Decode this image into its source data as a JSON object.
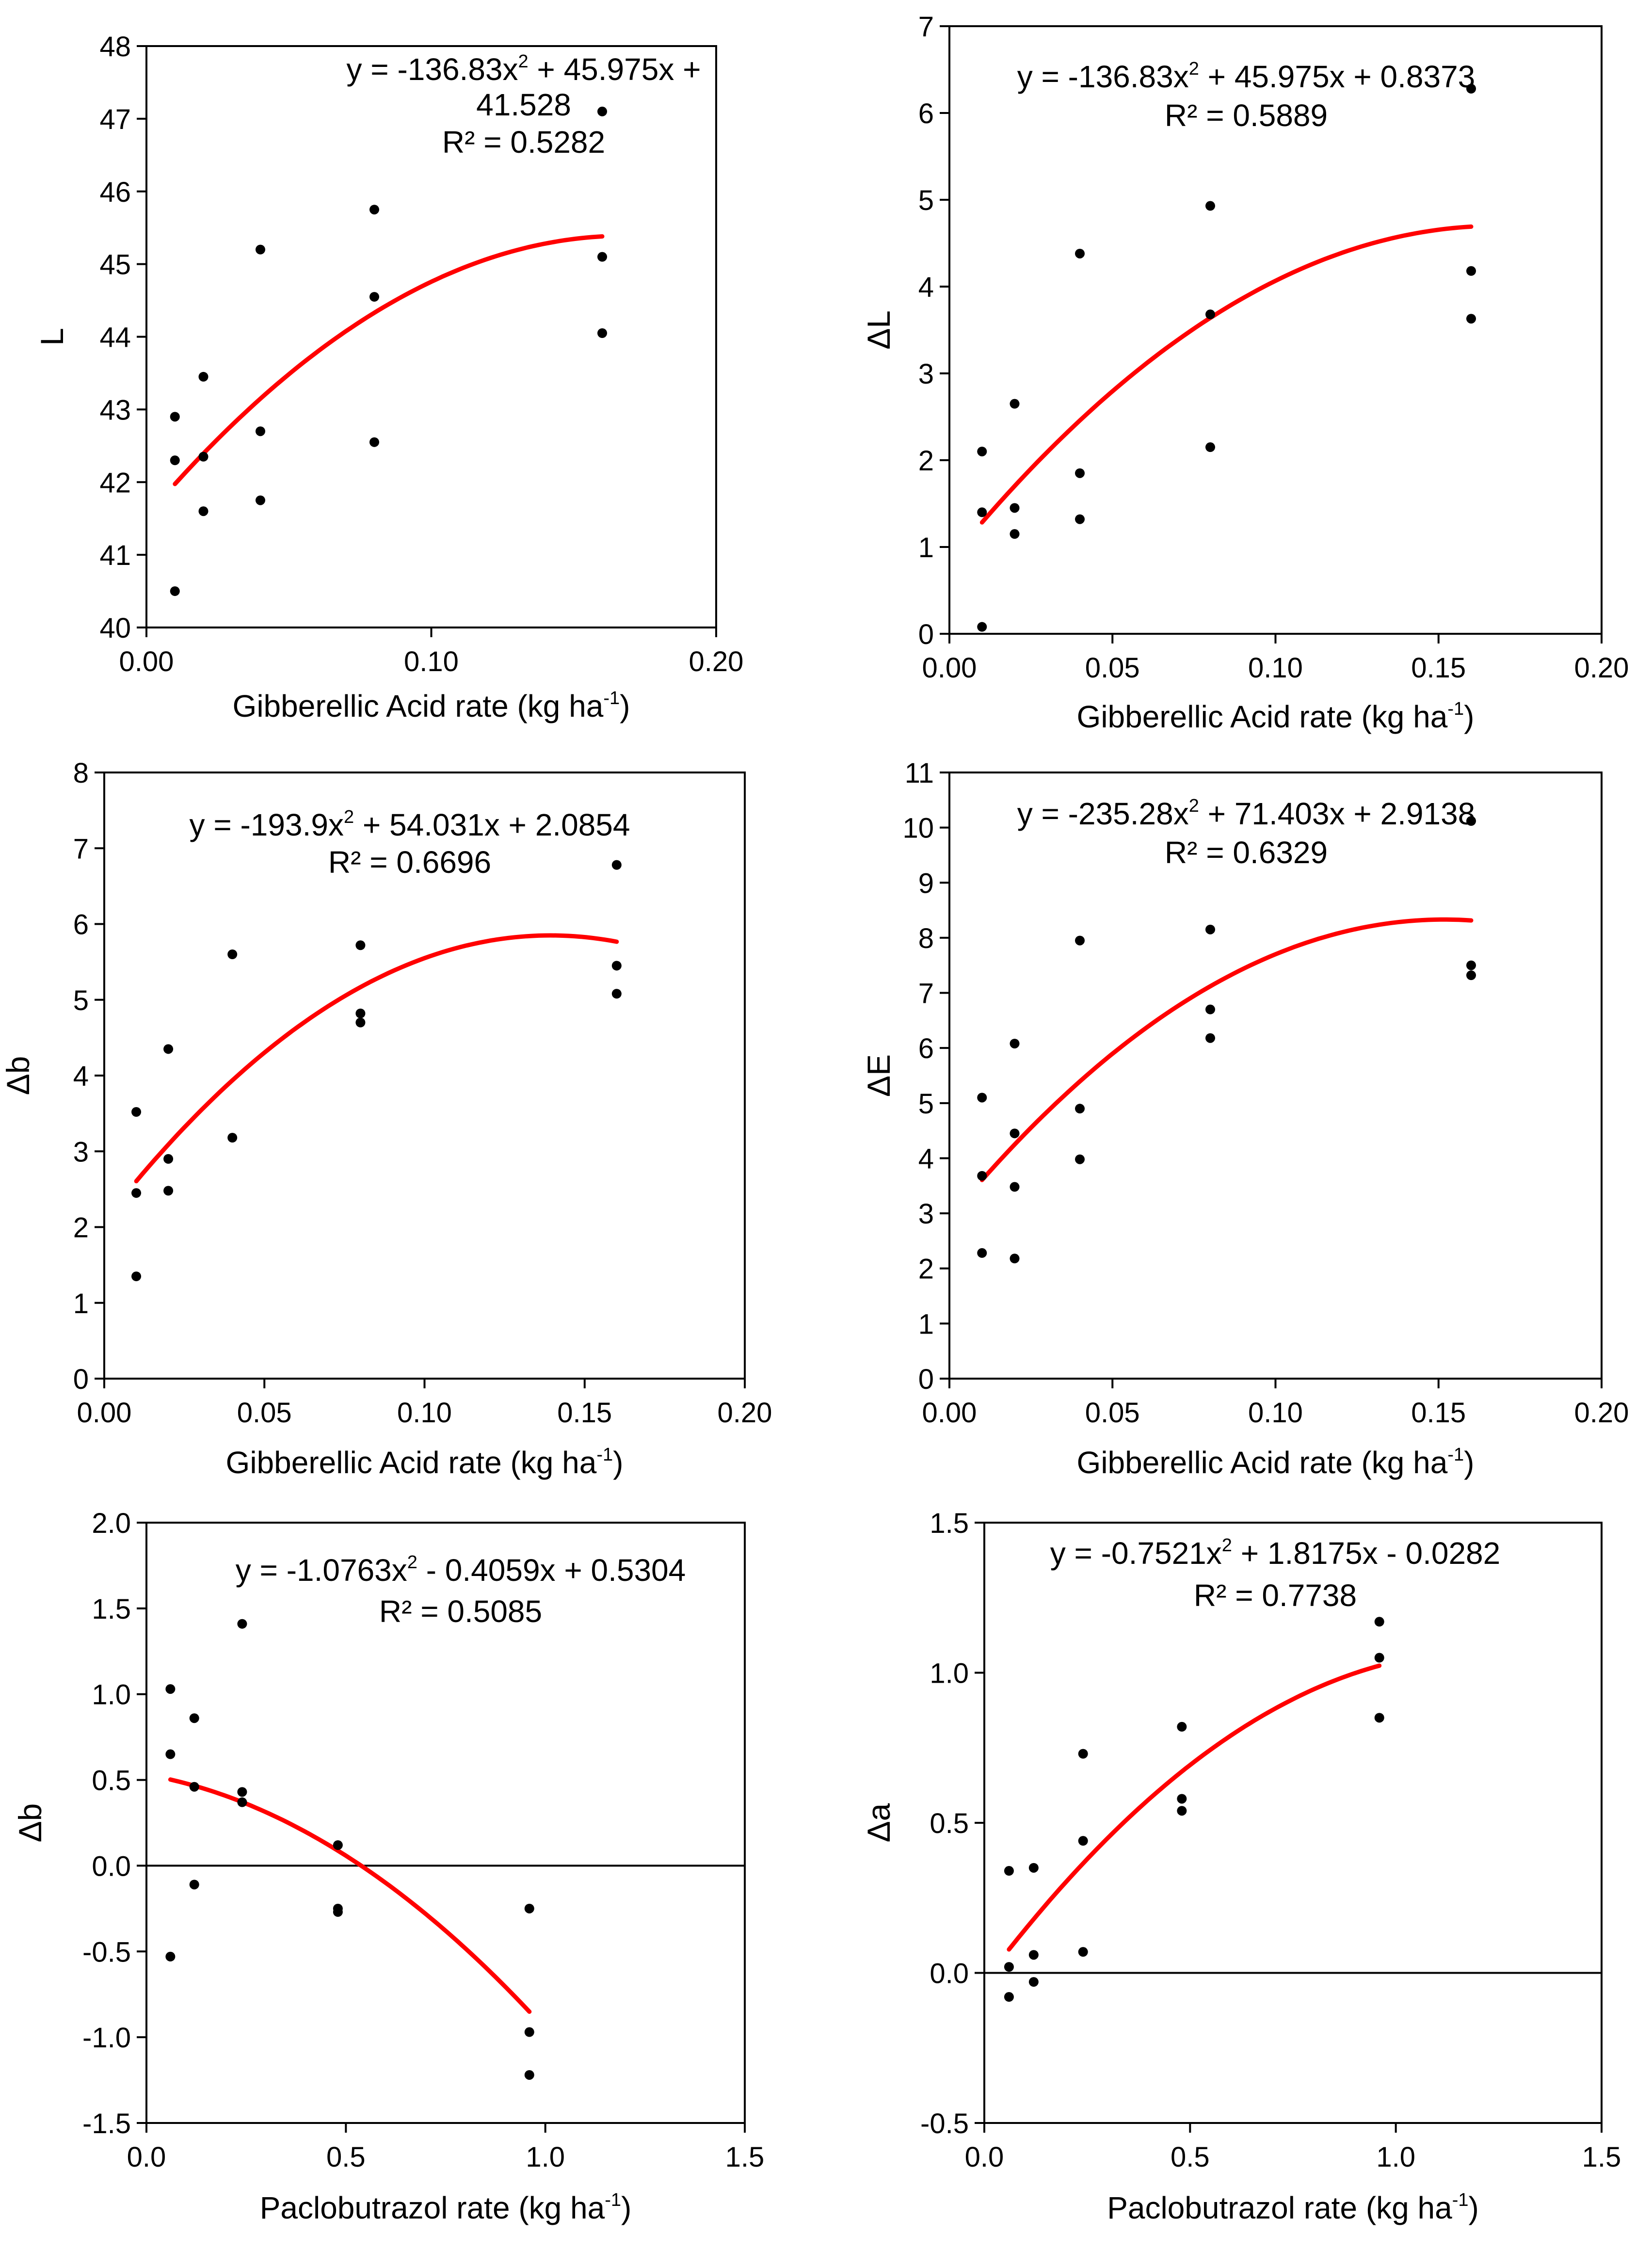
{
  "figure": {
    "charts": 6,
    "colors": {
      "axis": "#000000",
      "point": "#000000",
      "fit": "#ff0000",
      "background": "#ffffff"
    }
  },
  "chart_data": [
    {
      "id": "L",
      "type": "scatter",
      "xlabel": "Gibberellic Acid rate (kg ha",
      "xlabel_sup": "-1",
      "xlabel_close": ")",
      "ylabel": "L",
      "xlim": [
        0,
        0.2
      ],
      "ylim": [
        40,
        48
      ],
      "xticks": [
        "0.00",
        "0.10",
        "0.20"
      ],
      "xtick_values": [
        0,
        0.1,
        0.2
      ],
      "yticks": [
        "40",
        "41",
        "42",
        "43",
        "44",
        "45",
        "46",
        "47",
        "48"
      ],
      "ytick_values": [
        40,
        41,
        42,
        43,
        44,
        45,
        46,
        47,
        48
      ],
      "annotation_lines": [
        "y = -136.83x",
        "2",
        " + 45.975x +",
        "41.528",
        "R² = 0.5282"
      ],
      "fit": {
        "a": -136.83,
        "b": 45.975,
        "c": 41.528,
        "x_range": [
          0.01,
          0.16
        ]
      },
      "x": [
        0.01,
        0.01,
        0.01,
        0.02,
        0.02,
        0.02,
        0.04,
        0.04,
        0.04,
        0.08,
        0.08,
        0.08,
        0.16,
        0.16,
        0.16
      ],
      "y": [
        42.9,
        42.3,
        40.5,
        43.45,
        42.35,
        41.6,
        45.2,
        42.7,
        41.75,
        45.75,
        44.55,
        42.55,
        47.1,
        45.1,
        44.05
      ]
    },
    {
      "id": "deltaL",
      "type": "scatter",
      "xlabel": "Gibberellic Acid rate (kg ha",
      "xlabel_sup": "-1",
      "xlabel_close": ")",
      "ylabel": "ΔL",
      "xlim": [
        0,
        0.2
      ],
      "ylim": [
        0,
        7
      ],
      "xticks": [
        "0.00",
        "0.05",
        "0.10",
        "0.15",
        "0.20"
      ],
      "xtick_values": [
        0,
        0.05,
        0.1,
        0.15,
        0.2
      ],
      "yticks": [
        "0",
        "1",
        "2",
        "3",
        "4",
        "5",
        "6",
        "7"
      ],
      "ytick_values": [
        0,
        1,
        2,
        3,
        4,
        5,
        6,
        7
      ],
      "annotation_lines": [
        "y = -136.83x",
        "2",
        " + 45.975x + 0.8373",
        "",
        "R² = 0.5889"
      ],
      "fit": {
        "a": -136.83,
        "b": 45.975,
        "c": 0.8373,
        "x_range": [
          0.01,
          0.16
        ]
      },
      "x": [
        0.01,
        0.01,
        0.01,
        0.02,
        0.02,
        0.02,
        0.04,
        0.04,
        0.04,
        0.08,
        0.08,
        0.08,
        0.16,
        0.16,
        0.16
      ],
      "y": [
        2.1,
        1.4,
        0.08,
        2.65,
        1.45,
        1.15,
        4.38,
        1.85,
        1.32,
        4.93,
        3.68,
        2.15,
        6.28,
        4.18,
        3.63
      ]
    },
    {
      "id": "deltab_ga",
      "type": "scatter",
      "xlabel": "Gibberellic Acid rate (kg ha",
      "xlabel_sup": "-1",
      "xlabel_close": ")",
      "ylabel": "Δb",
      "xlim": [
        0,
        0.2
      ],
      "ylim": [
        0,
        8
      ],
      "xticks": [
        "0.00",
        "0.05",
        "0.10",
        "0.15",
        "0.20"
      ],
      "xtick_values": [
        0,
        0.05,
        0.1,
        0.15,
        0.2
      ],
      "yticks": [
        "0",
        "1",
        "2",
        "3",
        "4",
        "5",
        "6",
        "7",
        "8"
      ],
      "ytick_values": [
        0,
        1,
        2,
        3,
        4,
        5,
        6,
        7,
        8
      ],
      "annotation_lines": [
        "y = -193.9x",
        "2",
        " + 54.031x + 2.0854",
        "",
        "R² = 0.6696"
      ],
      "fit": {
        "a": -193.9,
        "b": 54.031,
        "c": 2.0854,
        "x_range": [
          0.01,
          0.16
        ]
      },
      "x": [
        0.01,
        0.01,
        0.01,
        0.02,
        0.02,
        0.02,
        0.04,
        0.04,
        0.08,
        0.08,
        0.08,
        0.16,
        0.16,
        0.16
      ],
      "y": [
        3.52,
        2.45,
        1.35,
        4.35,
        2.9,
        2.48,
        5.6,
        3.18,
        5.72,
        4.82,
        4.7,
        6.78,
        5.45,
        5.08
      ]
    },
    {
      "id": "deltaE",
      "type": "scatter",
      "xlabel": "Gibberellic Acid rate (kg ha",
      "xlabel_sup": "-1",
      "xlabel_close": ")",
      "ylabel": "ΔE",
      "xlim": [
        0,
        0.2
      ],
      "ylim": [
        0,
        11
      ],
      "xticks": [
        "0.00",
        "0.05",
        "0.10",
        "0.15",
        "0.20"
      ],
      "xtick_values": [
        0,
        0.05,
        0.1,
        0.15,
        0.2
      ],
      "yticks": [
        "0",
        "1",
        "2",
        "3",
        "4",
        "5",
        "6",
        "7",
        "8",
        "9",
        "10",
        "11"
      ],
      "ytick_values": [
        0,
        1,
        2,
        3,
        4,
        5,
        6,
        7,
        8,
        9,
        10,
        11
      ],
      "annotation_lines": [
        "y = -235.28x",
        "2",
        " + 71.403x + 2.9138",
        "",
        "R² = 0.6329"
      ],
      "fit": {
        "a": -235.28,
        "b": 71.403,
        "c": 2.9138,
        "x_range": [
          0.01,
          0.16
        ]
      },
      "x": [
        0.01,
        0.01,
        0.01,
        0.02,
        0.02,
        0.02,
        0.02,
        0.04,
        0.04,
        0.04,
        0.08,
        0.08,
        0.08,
        0.16,
        0.16,
        0.16
      ],
      "y": [
        5.1,
        3.68,
        2.28,
        6.08,
        4.45,
        3.48,
        2.18,
        7.95,
        4.9,
        3.98,
        8.15,
        6.7,
        6.18,
        10.12,
        7.5,
        7.32
      ]
    },
    {
      "id": "deltab_pbz",
      "type": "scatter",
      "xlabel": "Paclobutrazol rate (kg ha",
      "xlabel_sup": "-1",
      "xlabel_close": ")",
      "ylabel": "Δb",
      "xlim": [
        0,
        1.5
      ],
      "ylim": [
        -1.5,
        2.0
      ],
      "xticks": [
        "0.0",
        "0.5",
        "1.0",
        "1.5"
      ],
      "xtick_values": [
        0,
        0.5,
        1.0,
        1.5
      ],
      "yticks": [
        "-1.5",
        "-1.0",
        "-0.5",
        "0.0",
        "0.5",
        "1.0",
        "1.5",
        "2.0"
      ],
      "ytick_values": [
        -1.5,
        -1.0,
        -0.5,
        0,
        0.5,
        1.0,
        1.5,
        2.0
      ],
      "zero_line": true,
      "annotation_lines": [
        "y = -1.0763x",
        "2",
        " - 0.4059x + 0.5304",
        "",
        "R² = 0.5085"
      ],
      "fit": {
        "a": -1.0763,
        "b": -0.4059,
        "c": 0.5304,
        "x_range": [
          0.06,
          0.96
        ]
      },
      "x": [
        0.06,
        0.06,
        0.06,
        0.12,
        0.12,
        0.12,
        0.24,
        0.24,
        0.24,
        0.48,
        0.48,
        0.48,
        0.96,
        0.96,
        0.96
      ],
      "y": [
        1.03,
        0.65,
        -0.53,
        0.86,
        0.46,
        -0.11,
        1.41,
        0.43,
        0.37,
        0.12,
        -0.25,
        -0.27,
        -0.25,
        -0.97,
        -1.22
      ]
    },
    {
      "id": "deltaa_pbz",
      "type": "scatter",
      "xlabel": "Paclobutrazol rate (kg ha",
      "xlabel_sup": "-1",
      "xlabel_close": ")",
      "ylabel": "Δa",
      "xlim": [
        0,
        1.5
      ],
      "ylim": [
        -0.5,
        1.5
      ],
      "xticks": [
        "0.0",
        "0.5",
        "1.0",
        "1.5"
      ],
      "xtick_values": [
        0,
        0.5,
        1.0,
        1.5
      ],
      "yticks": [
        "-0.5",
        "0.0",
        "0.5",
        "1.0",
        "1.5"
      ],
      "ytick_values": [
        -0.5,
        0,
        0.5,
        1.0,
        1.5
      ],
      "zero_line": true,
      "annotation_lines": [
        "y = -0.7521x",
        "2",
        " + 1.8175x - 0.0282",
        "",
        "R² = 0.7738"
      ],
      "fit": {
        "a": -0.7521,
        "b": 1.8175,
        "c": -0.0282,
        "x_range": [
          0.06,
          0.96
        ]
      },
      "x": [
        0.06,
        0.06,
        0.06,
        0.12,
        0.12,
        0.12,
        0.24,
        0.24,
        0.24,
        0.48,
        0.48,
        0.48,
        0.96,
        0.96,
        0.96
      ],
      "y": [
        0.34,
        0.02,
        -0.08,
        0.35,
        0.06,
        -0.03,
        0.73,
        0.44,
        0.07,
        0.82,
        0.58,
        0.54,
        1.17,
        1.05,
        0.85
      ]
    }
  ]
}
